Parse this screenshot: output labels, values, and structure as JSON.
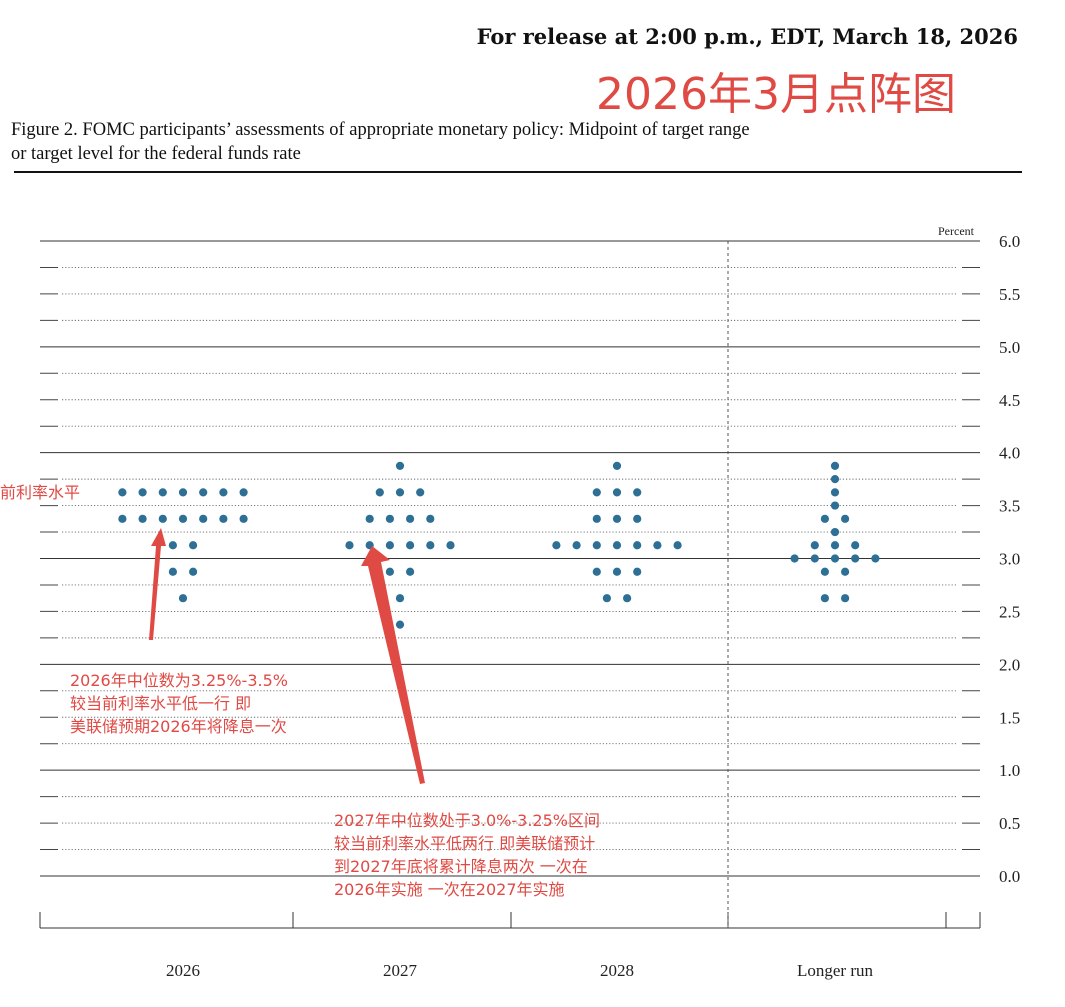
{
  "header": {
    "release_text": "For release at 2:00 p.m., EDT, March 18, 2026",
    "overlay_title": "2026年3月点阵图",
    "figure_caption_line1": "Figure 2. FOMC participants’ assessments of appropriate monetary policy: Midpoint of target range",
    "figure_caption_line2": "or target level for the federal funds rate"
  },
  "annotations": {
    "left_cutoff": "前利率水平",
    "note_2026": "2026年中位数为3.25%-3.5%\n较当前利率水平低一行 即\n美联储预期2026年将降息一次",
    "note_2027": "2027年中位数处于3.0%-3.25%区间\n较当前利率水平低两行 即美联储预计\n到2027年底将累计降息两次 一次在\n2026年实施 一次在2027年实施"
  },
  "colors": {
    "dot": "#2e6f95",
    "annotation": "#e04a44",
    "arrow": "#e04a44"
  },
  "chart_data": {
    "type": "scatter",
    "unit_label": "Percent",
    "categories": [
      "2026",
      "2027",
      "2028",
      "Longer run"
    ],
    "ylim": [
      0,
      6
    ],
    "y_ticks": [
      "6.0",
      "5.5",
      "5.0",
      "4.5",
      "4.0",
      "3.5",
      "3.0",
      "2.5",
      "2.0",
      "1.5",
      "1.0",
      "0.5",
      "0.0"
    ],
    "series": [
      {
        "category": "2026",
        "dots": [
          {
            "y": 3.625,
            "count": 7
          },
          {
            "y": 3.375,
            "count": 7
          },
          {
            "y": 3.125,
            "count": 2
          },
          {
            "y": 2.875,
            "count": 2
          },
          {
            "y": 2.625,
            "count": 1
          }
        ]
      },
      {
        "category": "2027",
        "dots": [
          {
            "y": 3.875,
            "count": 1
          },
          {
            "y": 3.625,
            "count": 3
          },
          {
            "y": 3.375,
            "count": 4
          },
          {
            "y": 3.125,
            "count": 6
          },
          {
            "y": 2.875,
            "count": 2
          },
          {
            "y": 2.625,
            "count": 1
          },
          {
            "y": 2.375,
            "count": 1
          }
        ]
      },
      {
        "category": "2028",
        "dots": [
          {
            "y": 3.875,
            "count": 1
          },
          {
            "y": 3.625,
            "count": 3
          },
          {
            "y": 3.375,
            "count": 3
          },
          {
            "y": 3.125,
            "count": 7
          },
          {
            "y": 2.875,
            "count": 3
          },
          {
            "y": 2.625,
            "count": 2
          }
        ]
      },
      {
        "category": "Longer run",
        "dots": [
          {
            "y": 3.875,
            "count": 1
          },
          {
            "y": 3.75,
            "count": 1
          },
          {
            "y": 3.625,
            "count": 1
          },
          {
            "y": 3.5,
            "count": 1
          },
          {
            "y": 3.375,
            "count": 2
          },
          {
            "y": 3.25,
            "count": 1
          },
          {
            "y": 3.125,
            "count": 3
          },
          {
            "y": 3.0,
            "count": 5
          },
          {
            "y": 2.875,
            "count": 2
          },
          {
            "y": 2.625,
            "count": 2
          }
        ]
      }
    ]
  }
}
